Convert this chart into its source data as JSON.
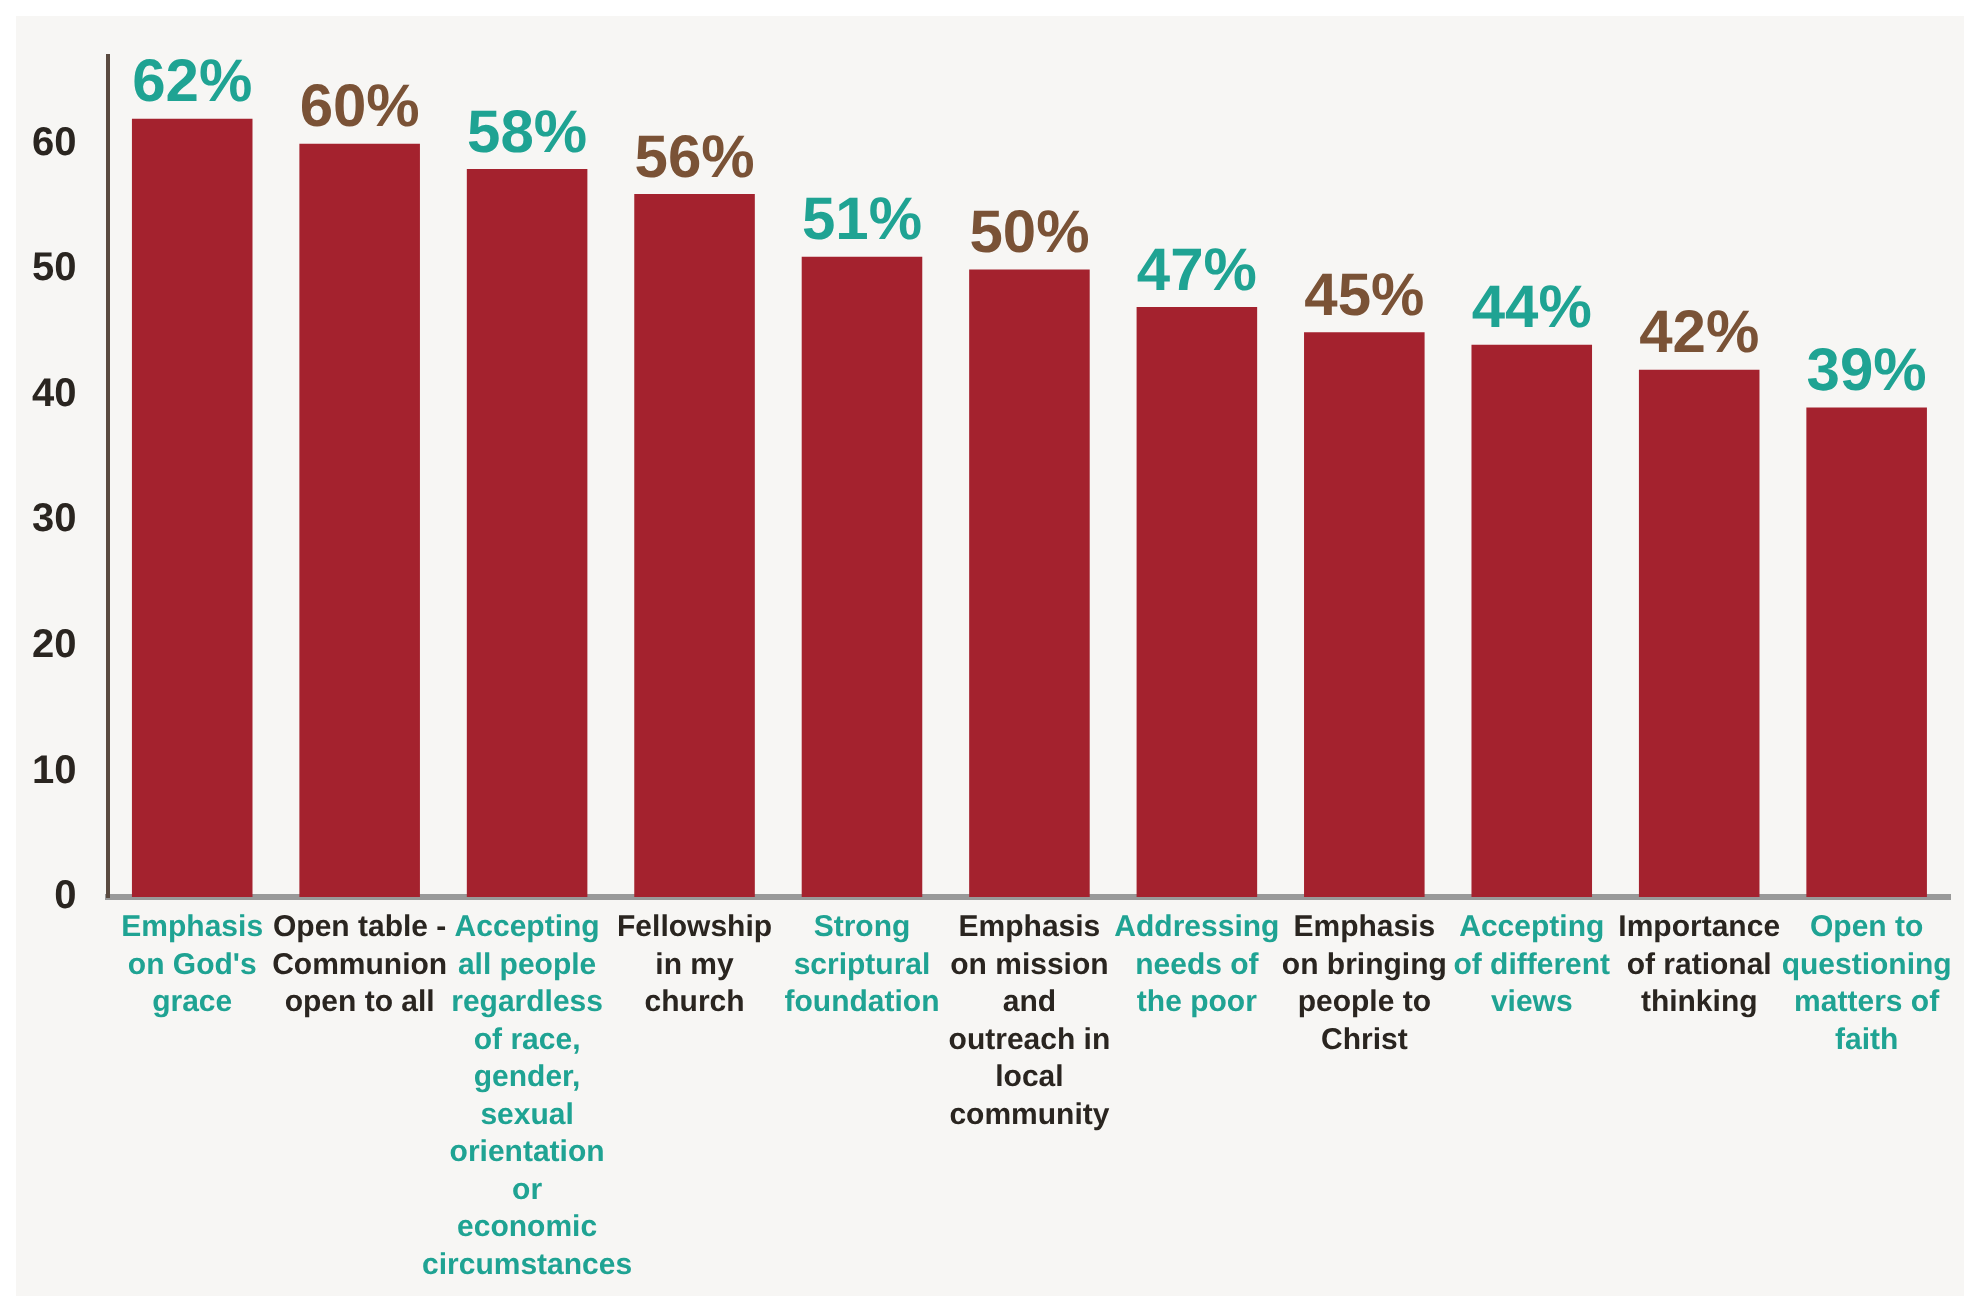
{
  "chart_data": {
    "type": "bar",
    "categories": [
      "Emphasis on God's grace",
      "Open table - Communion open to all",
      "Accepting all people regardless of race, gender, sexual orientation or economic circumstances",
      "Fellowship in my church",
      "Strong scriptural foundation",
      "Emphasis on mission and outreach in local community",
      "Addressing needs of the poor",
      "Emphasis on bringing people to Christ",
      "Accepting of different views",
      "Importance of rational thinking",
      "Open to questioning matters of faith"
    ],
    "values": [
      62,
      60,
      58,
      56,
      51,
      50,
      47,
      45,
      44,
      42,
      39
    ],
    "value_labels": [
      "62%",
      "60%",
      "58%",
      "56%",
      "51%",
      "50%",
      "47%",
      "45%",
      "44%",
      "42%",
      "39%"
    ],
    "color": "#a4222e",
    "ylim": [
      0,
      67
    ],
    "yticks": [
      0,
      10,
      20,
      30,
      40,
      50,
      60
    ],
    "grid": false,
    "legend": false
  }
}
